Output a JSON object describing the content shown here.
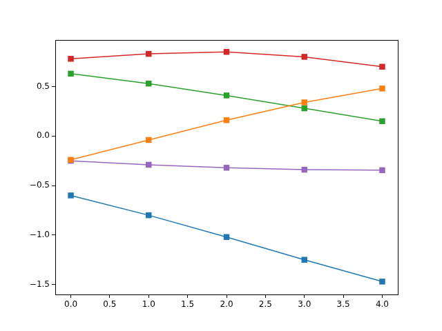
{
  "chart_data": {
    "type": "line",
    "marker": "square",
    "line_style": "solid",
    "grid": false,
    "x": [
      0,
      1,
      2,
      3,
      4
    ],
    "series": [
      {
        "color": "#1f77b4",
        "values": [
          -0.6,
          -0.8,
          -1.02,
          -1.25,
          -1.47
        ]
      },
      {
        "color": "#ff7f0e",
        "values": [
          -0.24,
          -0.04,
          0.16,
          0.34,
          0.48
        ]
      },
      {
        "color": "#2ca02c",
        "values": [
          0.63,
          0.53,
          0.41,
          0.28,
          0.15
        ]
      },
      {
        "color": "#d62728",
        "values": [
          0.78,
          0.83,
          0.85,
          0.8,
          0.7
        ]
      },
      {
        "color": "#9467bd",
        "values": [
          -0.25,
          -0.29,
          -0.32,
          -0.34,
          -0.345
        ]
      }
    ],
    "xlim": [
      -0.2,
      4.2
    ],
    "xticks": [
      {
        "value": 0,
        "label": "0.0"
      },
      0.5,
      {
        "value": 1,
        "label": "1.0"
      },
      1.5,
      {
        "value": 2,
        "label": "2.0"
      },
      2.5,
      {
        "value": 3,
        "label": "3.0"
      },
      3.5,
      {
        "value": 4,
        "label": "4.0"
      }
    ],
    "ylim": [
      -1.6,
      0.97
    ],
    "yticks": [
      {
        "value": -1.5,
        "label": "−1.5"
      },
      {
        "value": -1,
        "label": "−1.0"
      },
      {
        "value": -0.5,
        "label": "−0.5"
      },
      {
        "value": 0,
        "label": "0.0"
      },
      0.5
    ]
  }
}
